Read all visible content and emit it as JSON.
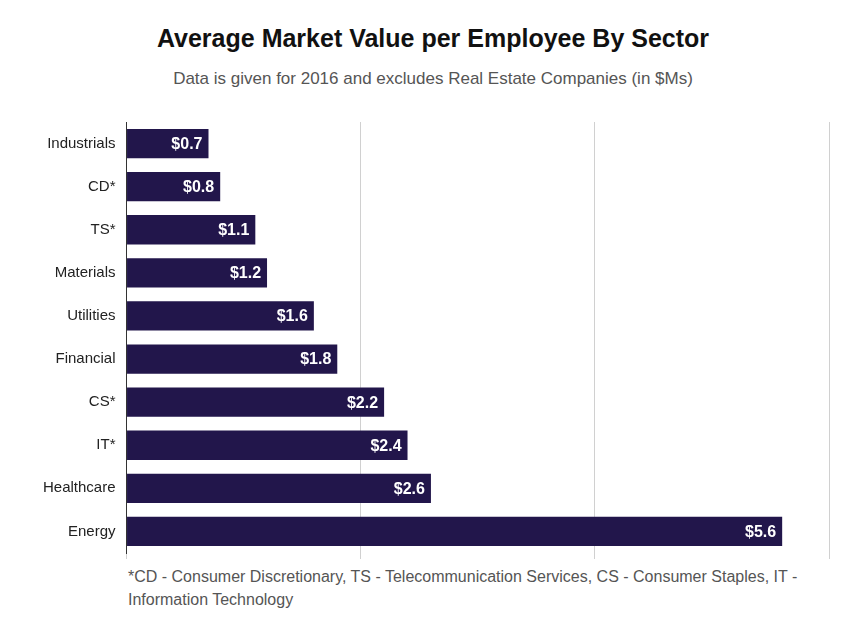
{
  "chart_data": {
    "type": "bar",
    "title": "Average Market Value per Employee By Sector",
    "subtitle": "Data is given for 2016 and excludes Real Estate Companies (in $Ms)",
    "footnote": "*CD - Consumer Discretionary, TS - Telecommunication Services, CS - Consumer Staples, IT - Information Technology",
    "categories": [
      "Industrials",
      "CD*",
      "TS*",
      "Materials",
      "Utilities",
      "Financial",
      "CS*",
      "IT*",
      "Healthcare",
      "Energy"
    ],
    "values": [
      0.7,
      0.8,
      1.1,
      1.2,
      1.6,
      1.8,
      2.2,
      2.4,
      2.6,
      5.6
    ],
    "value_labels": [
      "$0.7",
      "$0.8",
      "$1.1",
      "$1.2",
      "$1.6",
      "$1.8",
      "$2.2",
      "$2.4",
      "$2.6",
      "$5.6"
    ],
    "color": "#22164b",
    "orientation": "horizontal",
    "xlim": [
      0,
      6
    ],
    "xticks": [
      0,
      2,
      4,
      6
    ],
    "grid": true,
    "data_labels": true,
    "tick_labels": "y"
  }
}
